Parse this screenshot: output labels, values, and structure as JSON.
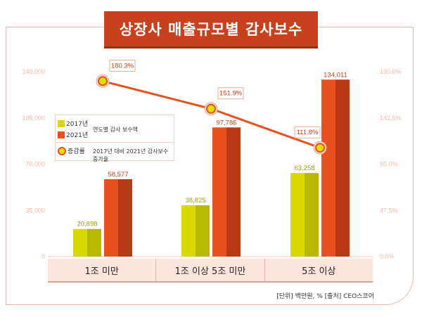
{
  "title": "상장사 매출규모별 감사보수",
  "legend": {
    "items": [
      {
        "label": "2017년",
        "color": "#d9d900"
      },
      {
        "label": "2021년",
        "color": "#e8501e"
      }
    ],
    "bar_desc": "연도별 감사 보수액",
    "rate_label": "증감률",
    "rate_desc": "2017년 대비 2021년 감사보수 증가율"
  },
  "footer": "[단위] 백만원, %   [출처] CEO스코어",
  "chart_data": {
    "type": "bar",
    "categories": [
      "1조 미만",
      "1조 이상 5조 미만",
      "5조 이상"
    ],
    "series": [
      {
        "name": "2017년",
        "values": [
          20898,
          38825,
          63258
        ],
        "labels": [
          "20,898",
          "38,825",
          "63,258"
        ],
        "color": "#d9d900"
      },
      {
        "name": "2021년",
        "values": [
          58577,
          97786,
          134011
        ],
        "labels": [
          "58,577",
          "97,786",
          "134,011"
        ],
        "color": "#e8501e"
      }
    ],
    "line_series": {
      "name": "증감률",
      "values": [
        180.3,
        151.9,
        111.8
      ],
      "labels": [
        "180.3%",
        "151.9%",
        "111.8%"
      ],
      "color": "#e8501e",
      "axis": "right"
    },
    "y_left": {
      "ylim": [
        0,
        140000
      ],
      "ticks": [
        "0",
        "35,000",
        "70,000",
        "105,000",
        "140,000"
      ]
    },
    "y_right": {
      "ylim": [
        0,
        190
      ],
      "ticks": [
        "0.0%",
        "47.5%",
        "95.0%",
        "142.5%",
        "190.0%"
      ]
    },
    "grid": false
  }
}
